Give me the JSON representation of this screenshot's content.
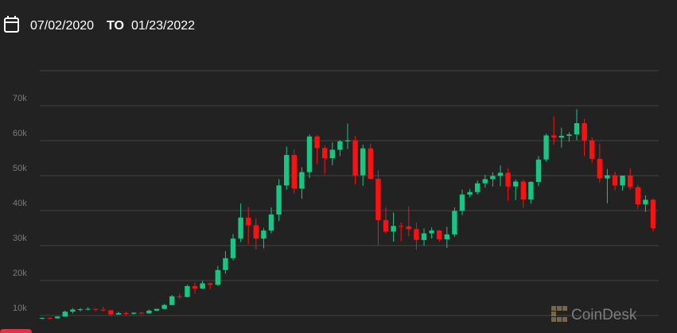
{
  "chart_data": {
    "type": "candlestick",
    "from_date": "07/02/2020",
    "to_label": "TO",
    "to_date": "01/23/2022",
    "watermark": "CoinDesk",
    "up_color": "#16c784",
    "down_color": "#ff1010",
    "grid": true,
    "ylim": [
      5,
      80
    ],
    "yticks": [
      {
        "value": 10,
        "label": "10k"
      },
      {
        "value": 20,
        "label": "20k"
      },
      {
        "value": 30,
        "label": "30k"
      },
      {
        "value": 40,
        "label": "40k"
      },
      {
        "value": 50,
        "label": "50k"
      },
      {
        "value": 60,
        "label": "60k"
      },
      {
        "value": 70,
        "label": "70k"
      }
    ],
    "open": [
      9.1,
      9.3,
      9.2,
      9.7,
      11.1,
      11.7,
      11.8,
      11.9,
      11.7,
      11.5,
      10.3,
      10.7,
      10.5,
      10.8,
      10.6,
      11.4,
      11.9,
      13.0,
      15.5,
      15.3,
      18.4,
      17.7,
      19.2,
      18.8,
      23.0,
      26.4,
      32.0,
      38.0,
      35.8,
      32.0,
      34.3,
      38.9,
      47.2,
      55.9,
      46.3,
      51.0,
      61.2,
      57.9,
      55.0,
      57.4,
      59.8,
      60.1,
      50.1,
      57.8,
      49.1,
      37.3,
      34.0,
      35.6,
      35.5,
      34.7,
      31.6,
      33.5,
      34.3,
      31.8,
      33.2,
      39.9,
      44.6,
      45.3,
      47.8,
      49.0,
      49.9,
      50.8,
      46.9,
      48.3,
      43.2,
      48.2,
      54.6,
      61.5,
      60.9,
      61.4,
      61.8,
      65.0,
      60.1,
      54.8,
      49.2,
      50.1,
      47.2,
      50.0,
      46.7,
      41.8,
      43.1
    ],
    "high": [
      9.4,
      9.5,
      9.8,
      11.4,
      12.1,
      12.1,
      12.4,
      12.0,
      12.5,
      11.6,
      11.1,
      11.2,
      10.9,
      11.0,
      11.7,
      11.9,
      13.3,
      15.9,
      16.3,
      18.8,
      19.4,
      19.9,
      19.4,
      24.2,
      28.4,
      33.3,
      42.0,
      41.0,
      37.8,
      35.0,
      40.9,
      49.0,
      58.3,
      57.5,
      52.4,
      61.8,
      61.6,
      58.6,
      59.5,
      60.2,
      64.9,
      61.4,
      58.9,
      59.2,
      51.5,
      40.9,
      39.5,
      36.6,
      41.3,
      36.6,
      34.9,
      35.2,
      34.5,
      35.4,
      40.9,
      46.0,
      46.2,
      48.6,
      50.2,
      51.0,
      52.9,
      52.2,
      48.9,
      48.8,
      48.4,
      55.6,
      62.0,
      67.0,
      63.7,
      62.4,
      69.0,
      66.3,
      60.9,
      59.1,
      51.9,
      51.2,
      49.5,
      52.1,
      47.3,
      44.4,
      43.5
    ],
    "low": [
      8.9,
      9.0,
      9.1,
      9.6,
      10.6,
      11.2,
      11.5,
      11.2,
      11.2,
      9.9,
      10.2,
      10.1,
      10.3,
      10.4,
      10.5,
      11.2,
      11.8,
      12.9,
      14.8,
      15.2,
      16.3,
      17.6,
      17.6,
      18.4,
      22.0,
      25.8,
      31.0,
      30.4,
      28.9,
      29.2,
      33.5,
      37.0,
      46.0,
      44.9,
      43.4,
      49.3,
      53.3,
      50.4,
      53.0,
      55.6,
      57.6,
      47.5,
      47.1,
      48.9,
      30.1,
      33.5,
      31.1,
      31.3,
      32.7,
      28.8,
      30.0,
      32.0,
      31.1,
      29.3,
      32.5,
      38.7,
      43.8,
      44.6,
      46.6,
      46.9,
      47.0,
      42.8,
      43.0,
      40.8,
      42.0,
      47.0,
      54.0,
      58.9,
      58.0,
      59.7,
      60.1,
      55.6,
      53.6,
      48.0,
      42.1,
      45.7,
      45.7,
      46.0,
      40.5,
      39.6,
      34.0
    ],
    "close": [
      9.3,
      9.2,
      9.7,
      11.1,
      11.7,
      11.8,
      11.9,
      11.7,
      11.5,
      10.3,
      10.7,
      10.5,
      10.8,
      10.6,
      11.4,
      11.9,
      13.0,
      15.5,
      15.3,
      18.4,
      17.7,
      19.2,
      18.8,
      23.0,
      26.4,
      32.0,
      38.0,
      35.8,
      32.0,
      34.3,
      38.9,
      47.2,
      55.9,
      46.3,
      51.0,
      61.2,
      57.9,
      55.0,
      57.4,
      59.8,
      60.1,
      50.1,
      57.8,
      49.1,
      37.3,
      34.0,
      35.6,
      35.5,
      34.7,
      31.6,
      33.5,
      34.3,
      31.8,
      33.2,
      39.9,
      44.6,
      45.3,
      47.8,
      49.0,
      49.9,
      50.8,
      46.9,
      48.3,
      43.2,
      48.2,
      54.6,
      61.5,
      60.9,
      61.4,
      61.8,
      65.0,
      60.1,
      54.8,
      49.2,
      50.1,
      47.2,
      50.0,
      46.7,
      41.8,
      43.1,
      35.0
    ]
  }
}
